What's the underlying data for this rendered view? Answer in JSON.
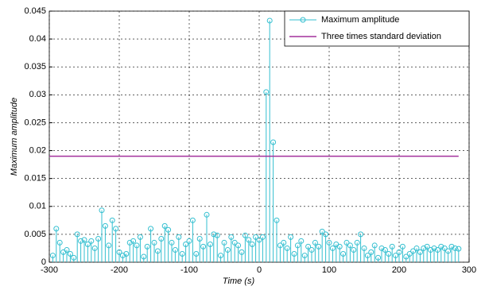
{
  "chart_data": {
    "type": "stem",
    "xlabel": "Time (s)",
    "ylabel": "Maximum amplitude",
    "xlim": [
      -300,
      300
    ],
    "xticks": [
      -300,
      -200,
      -100,
      0,
      100,
      200,
      300
    ],
    "ylim": [
      0,
      0.045
    ],
    "yticks": [
      0,
      0.005,
      0.01,
      0.015,
      0.02,
      0.025,
      0.03,
      0.035,
      0.04,
      0.045
    ],
    "grid": true,
    "legend": "upper right",
    "series": [
      {
        "name": "Maximum amplitude",
        "color": "#33bfd0",
        "type": "stem",
        "x": [
          -295,
          -290,
          -285,
          -280,
          -275,
          -270,
          -265,
          -260,
          -255,
          -250,
          -245,
          -240,
          -235,
          -230,
          -225,
          -220,
          -215,
          -210,
          -205,
          -200,
          -195,
          -190,
          -185,
          -180,
          -175,
          -170,
          -165,
          -160,
          -155,
          -150,
          -145,
          -140,
          -135,
          -130,
          -125,
          -120,
          -115,
          -110,
          -105,
          -100,
          -95,
          -90,
          -85,
          -80,
          -75,
          -70,
          -65,
          -60,
          -55,
          -50,
          -45,
          -40,
          -35,
          -30,
          -25,
          -20,
          -15,
          -10,
          -5,
          0,
          5,
          10,
          15,
          20,
          25,
          30,
          35,
          40,
          45,
          50,
          55,
          60,
          65,
          70,
          75,
          80,
          85,
          90,
          95,
          100,
          105,
          110,
          115,
          120,
          125,
          130,
          135,
          140,
          145,
          150,
          155,
          160,
          165,
          170,
          175,
          180,
          185,
          190,
          195,
          200,
          205,
          210,
          215,
          220,
          225,
          230,
          235,
          240,
          245,
          250,
          255,
          260,
          265,
          270,
          275,
          280,
          285
        ],
        "values": [
          0.0012,
          0.006,
          0.0035,
          0.0018,
          0.0022,
          0.0015,
          0.0008,
          0.005,
          0.0038,
          0.004,
          0.0032,
          0.0038,
          0.0025,
          0.0042,
          0.0093,
          0.0065,
          0.003,
          0.0075,
          0.006,
          0.0018,
          0.0012,
          0.0015,
          0.0035,
          0.0038,
          0.003,
          0.0045,
          0.001,
          0.0028,
          0.006,
          0.0035,
          0.002,
          0.0042,
          0.0065,
          0.0058,
          0.0035,
          0.0022,
          0.0045,
          0.0015,
          0.0032,
          0.0038,
          0.0075,
          0.0015,
          0.0042,
          0.0028,
          0.0085,
          0.0032,
          0.005,
          0.0048,
          0.0012,
          0.0035,
          0.0022,
          0.0045,
          0.0035,
          0.003,
          0.0018,
          0.0048,
          0.004,
          0.0032,
          0.0045,
          0.004,
          0.0045,
          0.0305,
          0.0433,
          0.0215,
          0.0075,
          0.003,
          0.0035,
          0.0025,
          0.0045,
          0.0015,
          0.003,
          0.0038,
          0.0012,
          0.0028,
          0.0022,
          0.0035,
          0.0028,
          0.0055,
          0.005,
          0.0035,
          0.0025,
          0.0032,
          0.0028,
          0.0015,
          0.0035,
          0.003,
          0.0022,
          0.0035,
          0.005,
          0.0025,
          0.0012,
          0.0018,
          0.003,
          0.0008,
          0.0025,
          0.0022,
          0.0015,
          0.0028,
          0.0012,
          0.0018,
          0.0028,
          0.001,
          0.0015,
          0.002,
          0.0025,
          0.0018,
          0.0025,
          0.0028,
          0.0022,
          0.0025,
          0.0022,
          0.0028,
          0.0025,
          0.002,
          0.0028,
          0.0025,
          0.0024
        ]
      },
      {
        "name": "Three times standard deviation",
        "color": "#a3309c",
        "type": "line",
        "x": [
          -300,
          285
        ],
        "values": [
          0.019,
          0.019
        ]
      }
    ]
  }
}
